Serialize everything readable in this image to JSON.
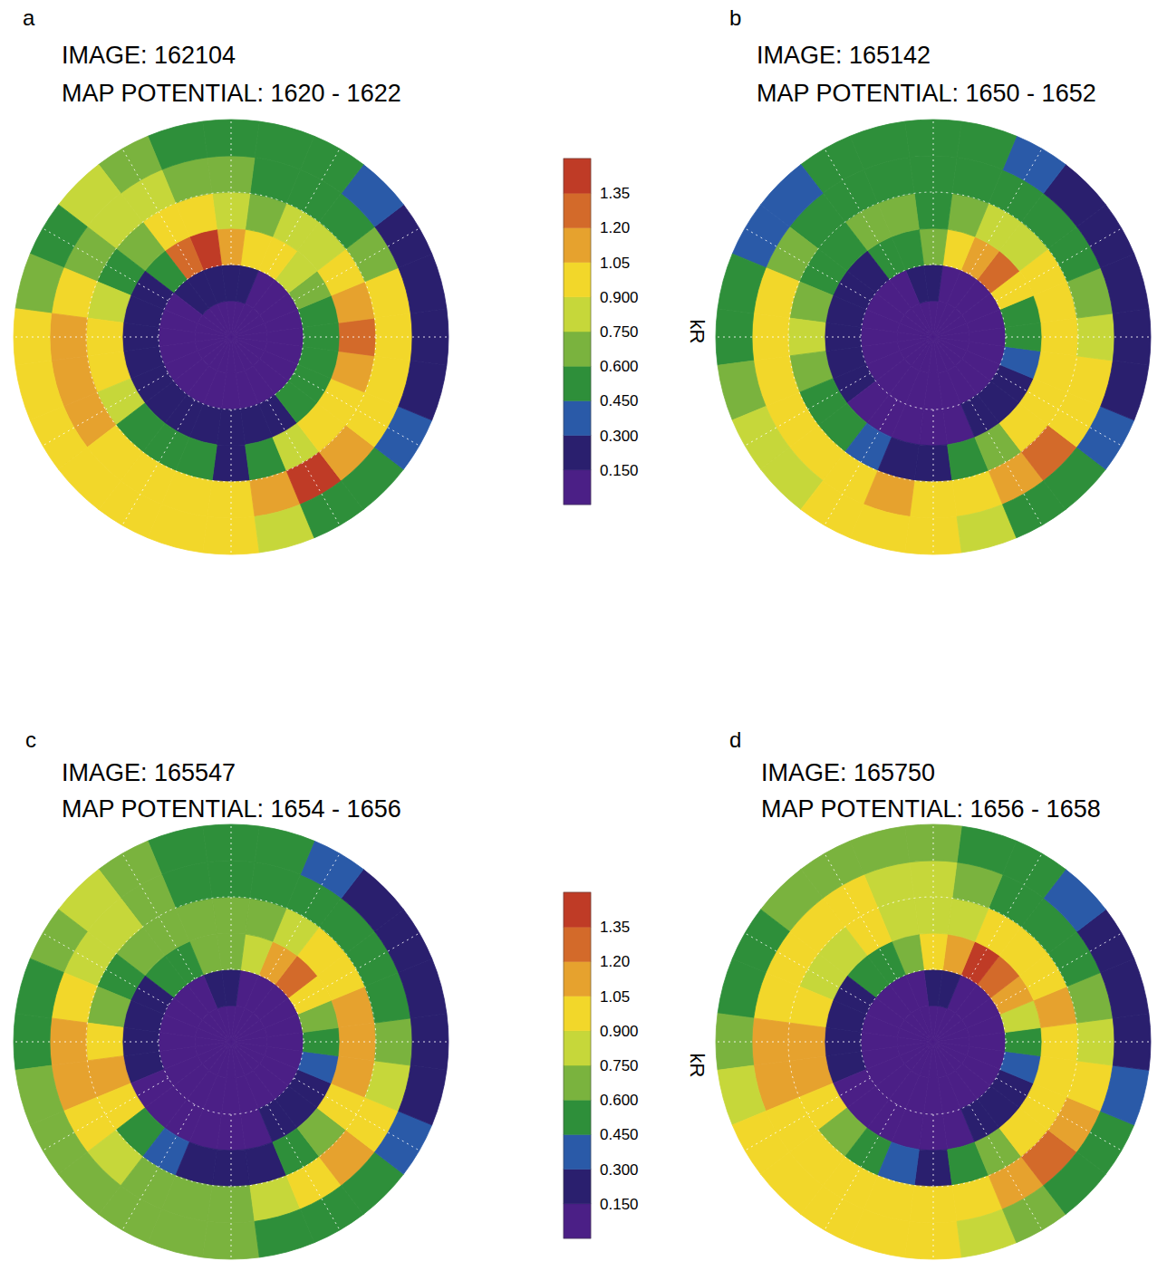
{
  "colorbar": {
    "label": "kR",
    "range": [
      0,
      1.5
    ],
    "colors": [
      "#4b1f86",
      "#2a1f6e",
      "#2a5aa8",
      "#2e8f3a",
      "#7ab33e",
      "#c6d73a",
      "#f2d72a",
      "#e6a22e",
      "#d36a2a",
      "#bf3b26"
    ],
    "ticks": [
      {
        "value": 0.15,
        "label": "0.150"
      },
      {
        "value": 0.3,
        "label": "0.300"
      },
      {
        "value": 0.45,
        "label": "0.450"
      },
      {
        "value": 0.6,
        "label": "0.600"
      },
      {
        "value": 0.75,
        "label": "0.750"
      },
      {
        "value": 0.9,
        "label": "0.900"
      },
      1.05,
      {
        "value": 1.2,
        "label": "1.20"
      },
      1.35
    ]
  },
  "chart_data": [
    {
      "type": "polar_heatmap",
      "panel": "a",
      "title": "IMAGE: 162104",
      "subtitle": "MAP POTENTIAL: 1620 - 1622",
      "tick_labels": false,
      "grid": true,
      "x": [
        0,
        1,
        2,
        3,
        4,
        5,
        6,
        7,
        8,
        9,
        10,
        11,
        12,
        13,
        14,
        15,
        16,
        17,
        18,
        19,
        20,
        21,
        22,
        23
      ],
      "xlim": [
        -0.5,
        23.5
      ],
      "xticks": [
        0,
        2,
        4,
        6,
        8,
        10,
        12,
        14,
        16,
        18,
        20,
        22
      ],
      "ylim": [
        90,
        60
      ],
      "yticks": [
        80,
        70
      ],
      "y_bins": [
        90,
        85,
        80,
        75,
        70,
        65,
        60
      ],
      "cells": [
        [
          0.1,
          0.1,
          0.1,
          0.1,
          0.1,
          0.1,
          0.1,
          0.1,
          0.1,
          0.1,
          0.1,
          0.1,
          0.1,
          0.1,
          0.1,
          0.1,
          0.1,
          0.1,
          0.1,
          0.1,
          0.1,
          0.1,
          0.1,
          0.1
        ],
        [
          0.1,
          0.1,
          0.1,
          0.1,
          0.1,
          0.1,
          0.1,
          0.1,
          0.1,
          0.1,
          0.1,
          0.2,
          0.3,
          0.3,
          0.3,
          0.2,
          0.1,
          0.1,
          0.1,
          0.1,
          0.1,
          0.1,
          0.1,
          0.1
        ],
        [
          0.2,
          0.2,
          0.3,
          0.5,
          0.6,
          0.5,
          0.5,
          0.6,
          0.7,
          0.8,
          0.9,
          1.0,
          1.1,
          1.4,
          1.3,
          0.6,
          0.3,
          0.2,
          0.2,
          0.2,
          0.2,
          0.2,
          0.2,
          0.2
        ],
        [
          0.3,
          0.6,
          0.8,
          0.9,
          1.0,
          1.2,
          1.3,
          1.1,
          0.9,
          0.8,
          0.8,
          0.7,
          0.8,
          1.0,
          0.9,
          0.7,
          0.6,
          0.8,
          0.9,
          0.9,
          0.8,
          0.6,
          0.5,
          0.5
        ],
        [
          1.0,
          1.1,
          1.4,
          1.2,
          1.0,
          0.9,
          1.0,
          0.9,
          0.7,
          0.6,
          0.6,
          0.6,
          0.7,
          0.7,
          0.8,
          0.8,
          0.7,
          1.0,
          1.1,
          1.2,
          1.1,
          1.0,
          1.0,
          1.0
        ],
        [
          1.0,
          0.8,
          0.6,
          0.5,
          0.4,
          0.3,
          0.3,
          0.3,
          0.3,
          0.4,
          0.5,
          0.6,
          0.6,
          0.6,
          0.7,
          0.8,
          0.6,
          0.7,
          0.9,
          0.9,
          1.0,
          1.0,
          1.0,
          1.0
        ]
      ]
    },
    {
      "type": "polar_heatmap",
      "panel": "b",
      "title": "IMAGE: 165142",
      "subtitle": "MAP POTENTIAL: 1650 - 1652",
      "tick_labels": false,
      "grid": true,
      "x": [
        0,
        1,
        2,
        3,
        4,
        5,
        6,
        7,
        8,
        9,
        10,
        11,
        12,
        13,
        14,
        15,
        16,
        17,
        18,
        19,
        20,
        21,
        22,
        23
      ],
      "xlim": [
        -0.5,
        23.5
      ],
      "xticks": [
        0,
        2,
        4,
        6,
        8,
        10,
        12,
        14,
        16,
        18,
        20,
        22
      ],
      "ylim": [
        90,
        60
      ],
      "yticks": [
        80,
        70
      ],
      "y_bins": [
        90,
        85,
        80,
        75,
        70,
        65,
        60
      ],
      "cells": [
        [
          0.1,
          0.1,
          0.1,
          0.1,
          0.1,
          0.1,
          0.1,
          0.1,
          0.1,
          0.1,
          0.1,
          0.1,
          0.1,
          0.1,
          0.1,
          0.1,
          0.1,
          0.1,
          0.1,
          0.1,
          0.1,
          0.1,
          0.1,
          0.1
        ],
        [
          0.1,
          0.1,
          0.1,
          0.1,
          0.1,
          0.1,
          0.1,
          0.1,
          0.1,
          0.1,
          0.1,
          0.1,
          0.2,
          0.2,
          0.1,
          0.1,
          0.1,
          0.1,
          0.1,
          0.1,
          0.1,
          0.1,
          0.1,
          0.1
        ],
        [
          0.1,
          0.1,
          0.2,
          0.2,
          0.3,
          0.4,
          0.5,
          0.6,
          0.9,
          1.3,
          1.2,
          0.9,
          0.7,
          0.6,
          0.5,
          0.3,
          0.2,
          0.2,
          0.2,
          0.2,
          0.2,
          0.1,
          0.1,
          0.1
        ],
        [
          0.3,
          0.5,
          0.7,
          0.9,
          1.0,
          1.0,
          1.0,
          1.0,
          0.9,
          0.8,
          0.8,
          0.7,
          0.6,
          0.7,
          0.7,
          0.6,
          0.6,
          0.7,
          0.8,
          0.7,
          0.6,
          0.5,
          0.4,
          0.3
        ],
        [
          1.0,
          1.0,
          1.1,
          1.3,
          1.0,
          0.9,
          0.8,
          0.7,
          0.6,
          0.5,
          0.5,
          0.6,
          0.6,
          0.6,
          0.5,
          0.6,
          0.7,
          0.9,
          1.0,
          1.0,
          1.0,
          0.9,
          1.0,
          1.1
        ],
        [
          0.9,
          0.8,
          0.6,
          0.5,
          0.4,
          0.3,
          0.3,
          0.3,
          0.3,
          0.3,
          0.4,
          0.5,
          0.6,
          0.5,
          0.5,
          0.4,
          0.4,
          0.5,
          0.6,
          0.7,
          0.8,
          0.8,
          0.9,
          0.9
        ]
      ]
    },
    {
      "type": "polar_heatmap",
      "panel": "c",
      "title": "IMAGE: 165547",
      "subtitle": "MAP POTENTIAL: 1654 - 1656",
      "tick_labels": false,
      "grid": true,
      "x": [
        0,
        1,
        2,
        3,
        4,
        5,
        6,
        7,
        8,
        9,
        10,
        11,
        12,
        13,
        14,
        15,
        16,
        17,
        18,
        19,
        20,
        21,
        22,
        23
      ],
      "xlim": [
        -0.5,
        23.5
      ],
      "xticks": [
        0,
        2,
        4,
        6,
        8,
        10,
        12,
        14,
        16,
        18,
        20,
        22
      ],
      "ylim": [
        90,
        60
      ],
      "yticks": [
        80,
        70
      ],
      "y_bins": [
        90,
        85,
        80,
        75,
        70,
        65,
        60
      ],
      "cells": [
        [
          0.1,
          0.1,
          0.1,
          0.1,
          0.1,
          0.1,
          0.1,
          0.1,
          0.1,
          0.1,
          0.1,
          0.1,
          0.1,
          0.1,
          0.1,
          0.1,
          0.1,
          0.1,
          0.1,
          0.1,
          0.1,
          0.1,
          0.1,
          0.1
        ],
        [
          0.1,
          0.1,
          0.1,
          0.1,
          0.1,
          0.1,
          0.1,
          0.1,
          0.1,
          0.1,
          0.1,
          0.1,
          0.2,
          0.2,
          0.1,
          0.1,
          0.1,
          0.1,
          0.1,
          0.1,
          0.1,
          0.1,
          0.1,
          0.1
        ],
        [
          0.1,
          0.1,
          0.2,
          0.2,
          0.3,
          0.4,
          0.5,
          0.7,
          0.9,
          1.3,
          1.1,
          0.8,
          0.7,
          0.7,
          0.6,
          0.5,
          0.3,
          0.2,
          0.2,
          0.2,
          0.1,
          0.1,
          0.1,
          0.1
        ],
        [
          0.2,
          0.3,
          0.5,
          0.7,
          0.9,
          1.1,
          1.1,
          1.2,
          1.0,
          0.9,
          0.8,
          0.7,
          0.7,
          0.7,
          0.7,
          0.7,
          0.6,
          0.7,
          0.9,
          1.1,
          0.9,
          0.6,
          0.4,
          0.3
        ],
        [
          0.7,
          0.8,
          1.0,
          1.2,
          0.9,
          0.8,
          0.7,
          0.6,
          0.5,
          0.5,
          0.5,
          0.6,
          0.6,
          0.6,
          0.7,
          0.8,
          0.8,
          0.9,
          1.1,
          1.2,
          1.0,
          0.8,
          0.7,
          0.7
        ],
        [
          0.7,
          0.6,
          0.6,
          0.5,
          0.4,
          0.3,
          0.3,
          0.3,
          0.3,
          0.3,
          0.4,
          0.5,
          0.6,
          0.6,
          0.7,
          0.8,
          0.7,
          0.6,
          0.6,
          0.7,
          0.7,
          0.7,
          0.7,
          0.7
        ]
      ]
    },
    {
      "type": "polar_heatmap",
      "panel": "d",
      "title": "IMAGE: 165750",
      "subtitle": "MAP POTENTIAL: 1656 - 1658",
      "tick_labels": false,
      "grid": true,
      "x": [
        0,
        1,
        2,
        3,
        4,
        5,
        6,
        7,
        8,
        9,
        10,
        11,
        12,
        13,
        14,
        15,
        16,
        17,
        18,
        19,
        20,
        21,
        22,
        23
      ],
      "xlim": [
        -0.5,
        23.5
      ],
      "xticks": [
        0,
        2,
        4,
        6,
        8,
        10,
        12,
        14,
        16,
        18,
        20,
        22
      ],
      "ylim": [
        90,
        60
      ],
      "yticks": [
        80,
        70
      ],
      "y_bins": [
        90,
        85,
        80,
        75,
        70,
        65,
        60
      ],
      "cells": [
        [
          0.1,
          0.1,
          0.1,
          0.1,
          0.1,
          0.1,
          0.1,
          0.1,
          0.1,
          0.1,
          0.1,
          0.1,
          0.1,
          0.1,
          0.1,
          0.1,
          0.1,
          0.1,
          0.1,
          0.1,
          0.1,
          0.1,
          0.1,
          0.1
        ],
        [
          0.1,
          0.1,
          0.1,
          0.1,
          0.1,
          0.1,
          0.1,
          0.1,
          0.1,
          0.1,
          0.1,
          0.3,
          0.2,
          0.1,
          0.1,
          0.1,
          0.1,
          0.1,
          0.1,
          0.1,
          0.1,
          0.1,
          0.1,
          0.1
        ],
        [
          0.1,
          0.1,
          0.2,
          0.2,
          0.3,
          0.4,
          0.6,
          0.8,
          1.1,
          1.3,
          1.4,
          1.1,
          0.9,
          0.7,
          0.6,
          0.5,
          0.3,
          0.2,
          0.2,
          0.2,
          0.1,
          0.1,
          0.1,
          0.1
        ],
        [
          0.3,
          0.5,
          0.7,
          0.9,
          1.0,
          1.0,
          1.0,
          1.1,
          1.0,
          0.9,
          0.9,
          0.8,
          0.8,
          0.8,
          0.9,
          0.8,
          0.8,
          0.9,
          1.1,
          1.2,
          1.0,
          0.7,
          0.5,
          0.4
        ],
        [
          0.9,
          1.0,
          1.2,
          1.3,
          1.1,
          0.9,
          0.8,
          0.7,
          0.6,
          0.6,
          0.6,
          0.7,
          0.8,
          0.8,
          0.9,
          0.9,
          0.9,
          1.0,
          1.2,
          1.1,
          1.0,
          0.9,
          0.9,
          0.9
        ],
        [
          0.9,
          0.8,
          0.7,
          0.6,
          0.5,
          0.4,
          0.3,
          0.3,
          0.3,
          0.4,
          0.5,
          0.6,
          0.7,
          0.7,
          0.7,
          0.7,
          0.6,
          0.6,
          0.7,
          0.8,
          0.9,
          0.9,
          0.9,
          0.9
        ]
      ]
    }
  ]
}
